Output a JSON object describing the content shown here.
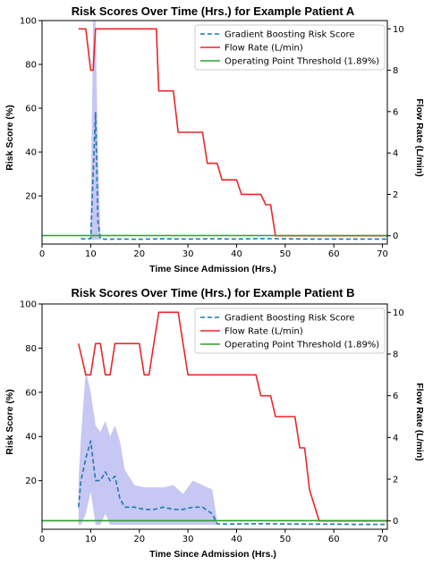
{
  "chart_data": [
    {
      "type": "line",
      "title": "Risk Scores Over Time (Hrs.) for Example Patient A",
      "xlabel": "Time Since Admission (Hrs.)",
      "ylabel": "Risk Score (%)",
      "ylabel_right": "Flow Rate (L/min)",
      "xlim": [
        0,
        71
      ],
      "ylim": [
        -2,
        100
      ],
      "ylim_right": [
        -0.4,
        10.4
      ],
      "xticks": [
        0,
        10,
        20,
        30,
        40,
        50,
        60,
        70
      ],
      "yticks": [
        20,
        40,
        60,
        80,
        100
      ],
      "yticks_right": [
        0,
        2,
        4,
        6,
        8,
        10
      ],
      "legend_position": "top-right",
      "grid": false,
      "series": [
        {
          "name": "Gradient Boosting Risk Score",
          "axis": "left",
          "style": "dashed",
          "color": "#1f77b4",
          "x": [
            8,
            9,
            10,
            10.5,
            11,
            11.5,
            12,
            13,
            16,
            20,
            25,
            30,
            35,
            40,
            45,
            50,
            55,
            60,
            65,
            71
          ],
          "y": [
            0.5,
            0.3,
            0.5,
            30,
            58,
            8,
            0.5,
            0.2,
            0.3,
            0.2,
            0.4,
            0.3,
            0.4,
            0.3,
            0.5,
            0.4,
            0.3,
            0.3,
            0.3,
            0.3
          ],
          "band_x": [
            10,
            10.5,
            11,
            11.5,
            12
          ],
          "band_low": [
            0,
            0,
            0,
            0,
            0
          ],
          "band_high": [
            10,
            100,
            100,
            40,
            5
          ],
          "band_color": "#b4b4f0"
        },
        {
          "name": "Flow Rate (L/min)",
          "axis": "right",
          "style": "solid",
          "color": "#e8272a",
          "x": [
            7.5,
            9,
            10,
            10.5,
            11,
            12,
            13,
            15,
            20,
            23.5,
            24,
            27,
            28,
            33,
            34,
            36,
            37,
            40,
            41,
            45,
            46,
            47,
            48,
            71
          ],
          "y": [
            10,
            10,
            8,
            8,
            10,
            10,
            10,
            10,
            10,
            10,
            7,
            7,
            5,
            5,
            3.5,
            3.5,
            2.7,
            2.7,
            2,
            2,
            1.5,
            1.5,
            0,
            0
          ]
        },
        {
          "name": "Operating Point Threshold (1.89%)",
          "axis": "left",
          "style": "solid",
          "color": "#2ca02c",
          "x": [
            0,
            71
          ],
          "y": [
            1.89,
            1.89
          ]
        }
      ]
    },
    {
      "type": "line",
      "title": "Risk Scores Over Time (Hrs.) for Example Patient B",
      "xlabel": "Time Since Admission (Hrs.)",
      "ylabel": "Risk Score (%)",
      "ylabel_right": "Flow Rate (L/min)",
      "xlim": [
        0,
        71
      ],
      "ylim": [
        -2,
        100
      ],
      "ylim_right": [
        -0.4,
        10.4
      ],
      "xticks": [
        0,
        10,
        20,
        30,
        40,
        50,
        60,
        70
      ],
      "yticks": [
        20,
        40,
        60,
        80,
        100
      ],
      "yticks_right": [
        0,
        2,
        4,
        6,
        8,
        10
      ],
      "legend_position": "top-right",
      "grid": false,
      "series": [
        {
          "name": "Gradient Boosting Risk Score",
          "axis": "left",
          "style": "dashed",
          "color": "#1f77b4",
          "x": [
            7.5,
            8,
            9,
            10,
            11,
            12,
            13,
            14,
            15,
            16,
            17,
            19,
            21,
            23,
            25,
            27,
            29,
            31,
            33,
            35,
            36,
            38,
            40,
            45,
            50,
            55,
            60,
            65,
            71
          ],
          "y": [
            8,
            20,
            30,
            38,
            20,
            20,
            24,
            20,
            22,
            12,
            8,
            8,
            7,
            7,
            8,
            7,
            7,
            8,
            8,
            5,
            0.5,
            0.3,
            0.4,
            0.5,
            0.4,
            0.3,
            0.3,
            0.2,
            0.2
          ],
          "band_x": [
            7.5,
            8,
            9,
            10,
            11,
            12,
            13,
            14,
            15,
            16,
            17,
            19,
            21,
            23,
            25,
            27,
            29,
            31,
            33,
            35,
            36
          ],
          "band_low": [
            0,
            0,
            5,
            15,
            0,
            0,
            5,
            0,
            0,
            0,
            0,
            0,
            0,
            0,
            0,
            0,
            0,
            0,
            0,
            0,
            0
          ],
          "band_high": [
            20,
            40,
            70,
            60,
            45,
            42,
            47,
            40,
            45,
            38,
            25,
            18,
            17,
            17,
            17,
            18,
            14,
            20,
            18,
            16,
            2
          ],
          "band_color": "#b4b4f0"
        },
        {
          "name": "Flow Rate (L/min)",
          "axis": "right",
          "style": "solid",
          "color": "#e8272a",
          "x": [
            7.5,
            8,
            9,
            10,
            11,
            12,
            13,
            14,
            15,
            16,
            17,
            20,
            21,
            22,
            23,
            24,
            26,
            27,
            28,
            30,
            36,
            39,
            44,
            45,
            47,
            48,
            49,
            52,
            53,
            54,
            55,
            57,
            65,
            71
          ],
          "y": [
            8.5,
            8,
            7,
            7,
            8.5,
            8.5,
            7,
            7,
            8.5,
            8.5,
            8.5,
            8.5,
            7,
            7,
            8.5,
            10,
            10,
            10,
            10,
            7,
            7,
            7,
            7,
            6,
            6,
            5,
            5,
            5,
            3.5,
            3.5,
            1.5,
            0,
            0,
            0
          ]
        },
        {
          "name": "Operating Point Threshold (1.89%)",
          "axis": "left",
          "style": "solid",
          "color": "#2ca02c",
          "x": [
            0,
            71
          ],
          "y": [
            1.89,
            1.89
          ]
        }
      ]
    }
  ]
}
